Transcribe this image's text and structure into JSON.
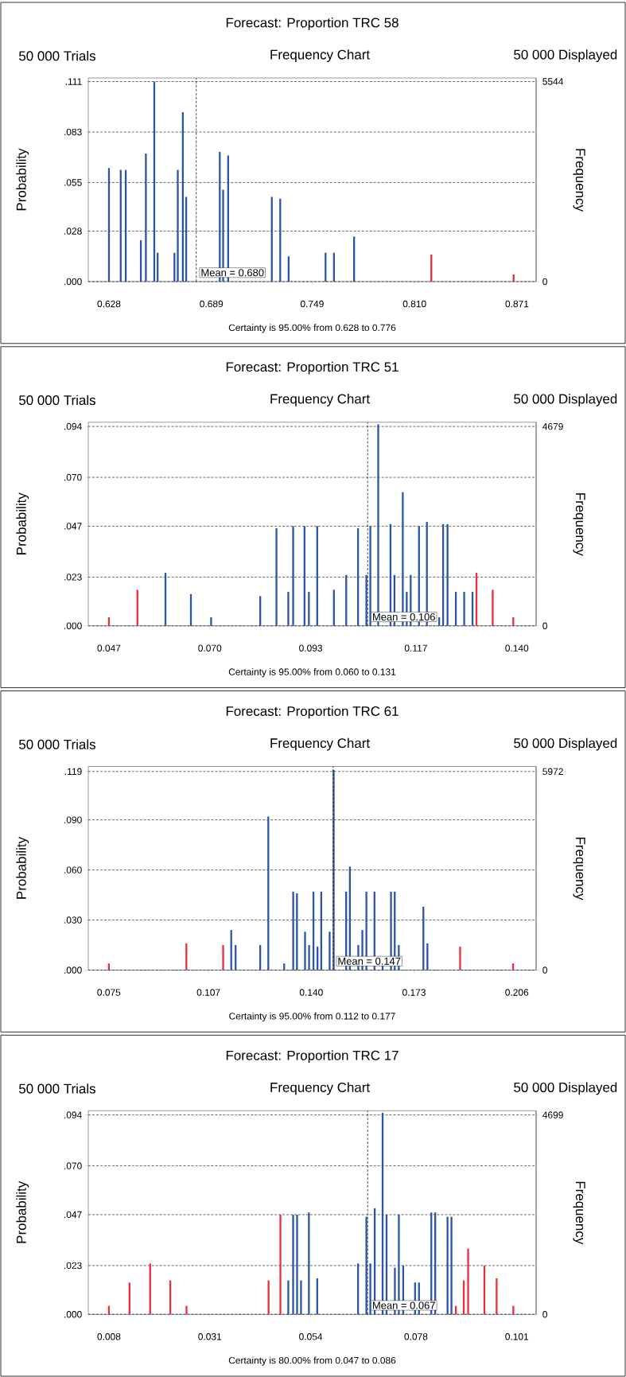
{
  "chart_data": [
    {
      "type": "bar",
      "title": "Forecast: Proportion TRC 58",
      "subtitle": "Frequency Chart",
      "annotations": [
        "50 000 Trials",
        "50 000 Displayed",
        "Certainty is 95.00% from 0.628 to 0.776"
      ],
      "ylabel": "Probability",
      "y2label": "Frequency",
      "xlim": [
        0.6157,
        0.8824
      ],
      "xticks": [
        {
          "value": 0.628,
          "label": "0.628"
        },
        {
          "value": 0.689,
          "label": "0.689"
        },
        {
          "value": 0.749,
          "label": "0.749"
        },
        {
          "value": 0.81,
          "label": "0.810"
        },
        {
          "value": 0.871,
          "label": "0.871"
        }
      ],
      "ylim": [
        0,
        0.113
      ],
      "yticks": [
        {
          "value": 0,
          "label": ".000"
        },
        {
          "value": 0.028,
          "label": ".028"
        },
        {
          "value": 0.055,
          "label": ".055"
        },
        {
          "value": 0.083,
          "label": ".083"
        },
        {
          "value": 0.111,
          "label": ".111"
        }
      ],
      "y2lim": [
        0,
        5644
      ],
      "y2ticks": [
        0,
        5544
      ],
      "grid": "y",
      "ref_lines": [
        {
          "axis": "x",
          "value": 0.68,
          "label": "Mean = 0.680",
          "line_style": "dashed"
        }
      ],
      "series": [
        {
          "color": "#2a55a8",
          "x": [
            0.628,
            0.635,
            0.638,
            0.647,
            0.65,
            0.655,
            0.657,
            0.667,
            0.669,
            0.672,
            0.674,
            0.694,
            0.696,
            0.699,
            0.725,
            0.73,
            0.735,
            0.757,
            0.762,
            0.774
          ],
          "values": [
            0.063,
            0.062,
            0.062,
            0.023,
            0.071,
            0.111,
            0.016,
            0.016,
            0.062,
            0.094,
            0.047,
            0.072,
            0.051,
            0.07,
            0.047,
            0.046,
            0.014,
            0.016,
            0.016,
            0.025
          ]
        },
        {
          "color": "#e8303a",
          "x": [
            0.82,
            0.869
          ],
          "values": [
            0.015,
            0.004
          ]
        }
      ]
    },
    {
      "type": "bar",
      "title": "Forecast: Proportion TRC 51",
      "subtitle": "Frequency Chart",
      "annotations": [
        "50 000 Trials",
        "50 000 Displayed",
        "Certainty is 95.00% from 0.060 to 0.131"
      ],
      "ylabel": "Probability",
      "y2label": "Frequency",
      "xlim": [
        0.0423,
        0.1444
      ],
      "xticks": [
        {
          "value": 0.047,
          "label": "0.047"
        },
        {
          "value": 0.07,
          "label": "0.070"
        },
        {
          "value": 0.093,
          "label": "0.093"
        },
        {
          "value": 0.117,
          "label": "0.117"
        },
        {
          "value": 0.14,
          "label": "0.140"
        }
      ],
      "ylim": [
        0,
        0.096
      ],
      "yticks": [
        {
          "value": 0,
          "label": ".000"
        },
        {
          "value": 0.023,
          "label": ".023"
        },
        {
          "value": 0.047,
          "label": ".047"
        },
        {
          "value": 0.07,
          "label": ".070"
        },
        {
          "value": 0.094,
          "label": ".094"
        }
      ],
      "y2lim": [
        0,
        4779
      ],
      "y2ticks": [
        0,
        4679
      ],
      "grid": "y",
      "ref_lines": [
        {
          "axis": "x",
          "value": 0.106,
          "label": "Mean = 0.106",
          "line_style": "dashed"
        }
      ],
      "series": [
        {
          "color": "#2a55a8",
          "x": [
            0.0599,
            0.0657,
            0.0703,
            0.0815,
            0.0852,
            0.0879,
            0.089,
            0.0916,
            0.0926,
            0.0945,
            0.0983,
            0.1011,
            0.1038,
            0.1057,
            0.1066,
            0.1084,
            0.1112,
            0.1121,
            0.114,
            0.1149,
            0.1158,
            0.1177,
            0.1195,
            0.1223,
            0.1232,
            0.1242,
            0.1261,
            0.128,
            0.1299
          ],
          "values": [
            0.025,
            0.015,
            0.004,
            0.014,
            0.046,
            0.016,
            0.047,
            0.047,
            0.016,
            0.047,
            0.017,
            0.024,
            0.046,
            0.024,
            0.047,
            0.095,
            0.048,
            0.024,
            0.063,
            0.016,
            0.024,
            0.047,
            0.049,
            0.004,
            0.048,
            0.048,
            0.016,
            0.016,
            0.016
          ]
        },
        {
          "color": "#e8303a",
          "x": [
            0.047,
            0.0535,
            0.1308,
            0.1345,
            0.1392
          ],
          "values": [
            0.004,
            0.017,
            0.025,
            0.017,
            0.004
          ]
        }
      ]
    },
    {
      "type": "bar",
      "title": "Forecast: Proportion TRC 61",
      "subtitle": "Frequency Chart",
      "annotations": [
        "50 000 Trials",
        "50 000 Displayed",
        "Certainty is 95.00% from 0.112 to 0.177"
      ],
      "ylabel": "Probability",
      "y2label": "Frequency",
      "xlim": [
        0.0684,
        0.2122
      ],
      "xticks": [
        {
          "value": 0.075,
          "label": "0.075"
        },
        {
          "value": 0.107,
          "label": "0.107"
        },
        {
          "value": 0.14,
          "label": "0.140"
        },
        {
          "value": 0.173,
          "label": "0.173"
        },
        {
          "value": 0.206,
          "label": "0.206"
        }
      ],
      "ylim": [
        0,
        0.122
      ],
      "yticks": [
        {
          "value": 0,
          "label": ".000"
        },
        {
          "value": 0.03,
          "label": ".030"
        },
        {
          "value": 0.06,
          "label": ".060"
        },
        {
          "value": 0.09,
          "label": ".090"
        },
        {
          "value": 0.119,
          "label": ".119"
        }
      ],
      "y2lim": [
        0,
        6123
      ],
      "y2ticks": [
        0,
        5972
      ],
      "grid": "y",
      "ref_lines": [
        {
          "axis": "x",
          "value": 0.147,
          "label": "Mean = 0.147",
          "line_style": "dashed"
        }
      ],
      "series": [
        {
          "color": "#2a55a8",
          "x": [
            0.1143,
            0.1157,
            0.1236,
            0.1262,
            0.1313,
            0.1342,
            0.1354,
            0.138,
            0.1393,
            0.1407,
            0.142,
            0.1432,
            0.1459,
            0.1472,
            0.1512,
            0.1524,
            0.1551,
            0.1564,
            0.1577,
            0.1603,
            0.1629,
            0.1656,
            0.1668,
            0.1681,
            0.176,
            0.1773
          ],
          "values": [
            0.024,
            0.015,
            0.015,
            0.092,
            0.004,
            0.047,
            0.046,
            0.023,
            0.015,
            0.047,
            0.014,
            0.047,
            0.023,
            0.12,
            0.047,
            0.062,
            0.015,
            0.024,
            0.047,
            0.047,
            0.003,
            0.047,
            0.047,
            0.015,
            0.038,
            0.016
          ]
        },
        {
          "color": "#e8303a",
          "x": [
            0.075,
            0.0999,
            0.1117,
            0.1878,
            0.2048
          ],
          "values": [
            0.004,
            0.016,
            0.015,
            0.014,
            0.004
          ]
        }
      ]
    },
    {
      "type": "bar",
      "title": "Forecast: Proportion TRC 17",
      "subtitle": "Frequency Chart",
      "annotations": [
        "50 000 Trials",
        "50 000 Displayed",
        "Certainty is 80.00% from 0.047 to 0.086"
      ],
      "ylabel": "Probability",
      "y2label": "Frequency",
      "xlim": [
        0.0033,
        0.1054
      ],
      "xticks": [
        {
          "value": 0.008,
          "label": "0.008"
        },
        {
          "value": 0.031,
          "label": "0.031"
        },
        {
          "value": 0.054,
          "label": "0.054"
        },
        {
          "value": 0.078,
          "label": "0.078"
        },
        {
          "value": 0.101,
          "label": "0.101"
        }
      ],
      "ylim": [
        0,
        0.096
      ],
      "yticks": [
        {
          "value": 0,
          "label": ".000"
        },
        {
          "value": 0.023,
          "label": ".023"
        },
        {
          "value": 0.047,
          "label": ".047"
        },
        {
          "value": 0.07,
          "label": ".070"
        },
        {
          "value": 0.094,
          "label": ".094"
        }
      ],
      "y2lim": [
        0,
        4799
      ],
      "y2ticks": [
        0,
        4699
      ],
      "grid": "y",
      "ref_lines": [
        {
          "axis": "x",
          "value": 0.067,
          "label": "Mean = 0.067",
          "line_style": "dashed"
        }
      ],
      "series": [
        {
          "color": "#2a55a8",
          "x": [
            0.0489,
            0.05,
            0.0509,
            0.0518,
            0.0536,
            0.0555,
            0.0648,
            0.0667,
            0.0676,
            0.0686,
            0.0704,
            0.0713,
            0.0732,
            0.0741,
            0.0751,
            0.0778,
            0.0787,
            0.0815,
            0.0824,
            0.0852,
            0.0861
          ],
          "values": [
            0.016,
            0.047,
            0.047,
            0.016,
            0.048,
            0.017,
            0.024,
            0.046,
            0.024,
            0.05,
            0.095,
            0.047,
            0.022,
            0.047,
            0.023,
            0.015,
            0.015,
            0.048,
            0.048,
            0.046,
            0.046
          ]
        },
        {
          "color": "#e8303a",
          "x": [
            0.008,
            0.0127,
            0.0174,
            0.022,
            0.0257,
            0.0444,
            0.0471,
            0.0871,
            0.0889,
            0.0899,
            0.0936,
            0.0964,
            0.1002
          ],
          "values": [
            0.004,
            0.015,
            0.024,
            0.016,
            0.004,
            0.016,
            0.047,
            0.004,
            0.016,
            0.031,
            0.023,
            0.017,
            0.004
          ]
        }
      ]
    }
  ]
}
